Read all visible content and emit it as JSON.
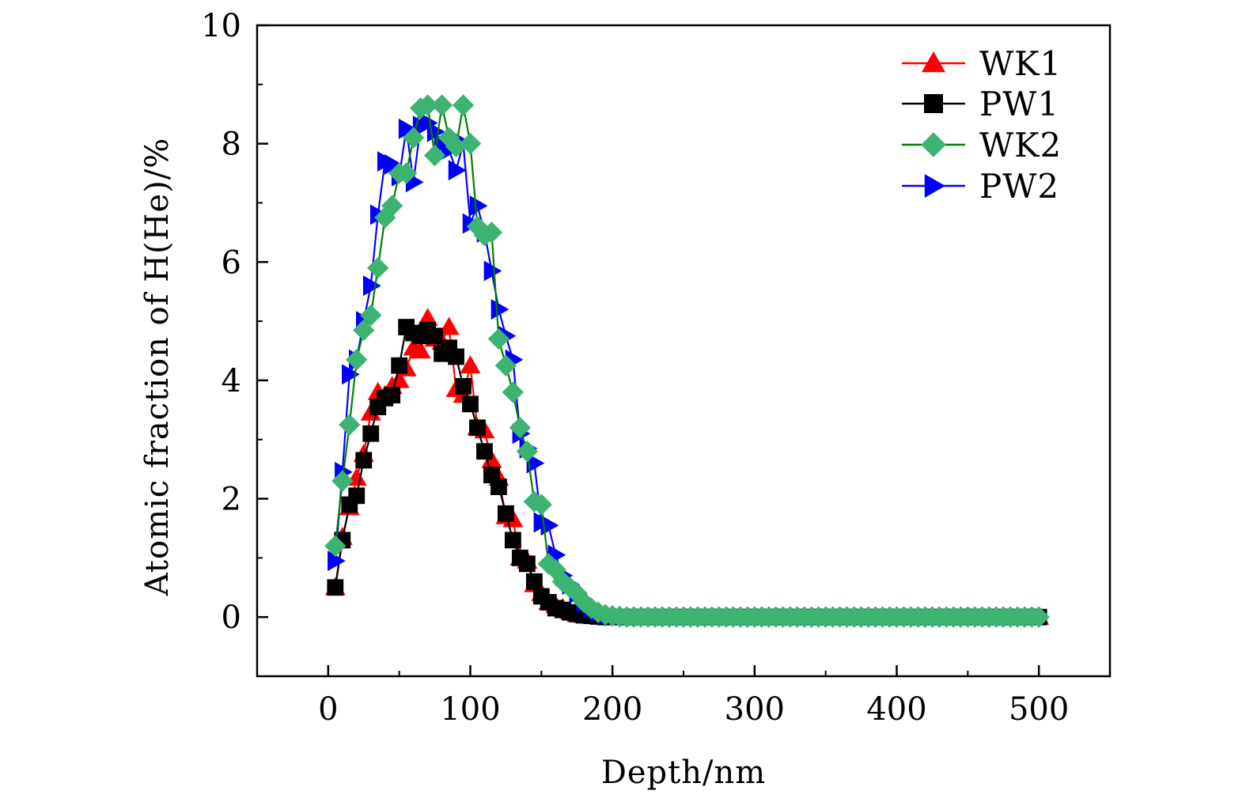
{
  "chart_data": {
    "type": "line",
    "title": "",
    "xlabel": "Depth/nm",
    "ylabel": "Atomic fraction of H(He)/%",
    "xlim": [
      -50,
      550
    ],
    "ylim": [
      -1,
      10
    ],
    "xticks": [
      0,
      100,
      200,
      300,
      400,
      500
    ],
    "yticks": [
      0,
      2,
      4,
      6,
      8,
      10
    ],
    "xtick_labels": [
      "0",
      "100",
      "200",
      "300",
      "400",
      "500"
    ],
    "ytick_labels": [
      "0",
      "2",
      "4",
      "6",
      "8",
      "10"
    ],
    "grid": false,
    "legend_position": "top-right",
    "x_step": 5,
    "x_max": 500,
    "series": [
      {
        "name": "WK1",
        "marker": "triangle-up",
        "color": "#ff0000",
        "marker_color": "#ff0000",
        "values": [
          0.5,
          1.35,
          1.85,
          2.35,
          2.75,
          3.45,
          3.8,
          3.75,
          3.9,
          4.0,
          4.2,
          4.55,
          4.5,
          5.05,
          4.7,
          4.65,
          4.9,
          3.85,
          3.75,
          4.25,
          3.2,
          3.15,
          2.65,
          2.35,
          1.7,
          1.65,
          1.0,
          0.95,
          0.55,
          0.4,
          0.25,
          0.2,
          0.15,
          0.1,
          0.05,
          0.03,
          0.02,
          0.01,
          0.0,
          0.0,
          0.0,
          0.0,
          0.0,
          0.0,
          0.0,
          0.0,
          0.0,
          0.0,
          0.0,
          0.0,
          0.0,
          0.0,
          0.0,
          0.0,
          0.0,
          0.0,
          0.0,
          0.0,
          0.0,
          0.0,
          0.0,
          0.0,
          0.0,
          0.0,
          0.0,
          0.0,
          0.0,
          0.0,
          0.0,
          0.0,
          0.0,
          0.0,
          0.0,
          0.0,
          0.0,
          0.0,
          0.0,
          0.0,
          0.0,
          0.0,
          0.0,
          0.0,
          0.0,
          0.0,
          0.0,
          0.0,
          0.0,
          0.0,
          0.0,
          0.0,
          0.0,
          0.0,
          0.0,
          0.0,
          0.0,
          0.0,
          0.0,
          0.0,
          0.0,
          0.0
        ]
      },
      {
        "name": "PW1",
        "marker": "square",
        "color": "#000000",
        "marker_color": "#000000",
        "values": [
          0.5,
          1.3,
          1.9,
          2.05,
          2.65,
          3.1,
          3.55,
          3.7,
          3.75,
          4.25,
          4.9,
          4.8,
          4.75,
          4.85,
          4.75,
          4.45,
          4.55,
          4.4,
          3.9,
          3.6,
          3.2,
          2.8,
          2.4,
          2.2,
          1.75,
          1.3,
          1.0,
          0.9,
          0.6,
          0.35,
          0.25,
          0.15,
          0.12,
          0.08,
          0.05,
          0.03,
          0.02,
          0.01,
          0.0,
          0.0,
          0.0,
          0.0,
          0.0,
          0.0,
          0.0,
          0.0,
          0.0,
          0.0,
          0.0,
          0.0,
          0.0,
          0.0,
          0.0,
          0.0,
          0.0,
          0.0,
          0.0,
          0.0,
          0.0,
          0.0,
          0.0,
          0.0,
          0.0,
          0.0,
          0.0,
          0.0,
          0.0,
          0.0,
          0.0,
          0.0,
          0.0,
          0.0,
          0.0,
          0.0,
          0.0,
          0.0,
          0.0,
          0.0,
          0.0,
          0.0,
          0.0,
          0.0,
          0.0,
          0.0,
          0.0,
          0.0,
          0.0,
          0.0,
          0.0,
          0.0,
          0.0,
          0.0,
          0.0,
          0.0,
          0.0,
          0.0,
          0.0,
          0.0,
          0.0,
          0.0
        ]
      },
      {
        "name": "PW2",
        "marker": "triangle-right",
        "color": "#0000ff",
        "marker_color": "#0000ff",
        "values": [
          0.95,
          2.45,
          4.1,
          4.35,
          5.0,
          5.6,
          6.8,
          7.7,
          7.65,
          7.45,
          8.25,
          7.35,
          8.3,
          8.35,
          8.2,
          8.0,
          7.9,
          7.55,
          8.0,
          6.65,
          6.95,
          6.5,
          5.85,
          5.2,
          4.75,
          4.35,
          3.1,
          2.85,
          2.6,
          1.6,
          1.55,
          1.05,
          0.7,
          0.55,
          0.4,
          0.25,
          0.15,
          0.08,
          0.04,
          0.02,
          0.01,
          0.0,
          0.0,
          0.0,
          0.0,
          0.0,
          0.0,
          0.0,
          0.0,
          0.0,
          0.0,
          0.0,
          0.0,
          0.0,
          0.0,
          0.0,
          0.0,
          0.0,
          0.0,
          0.0,
          0.0,
          0.0,
          0.0,
          0.0,
          0.0,
          0.0,
          0.0,
          0.0,
          0.0,
          0.0,
          0.0,
          0.0,
          0.0,
          0.0,
          0.0,
          0.0,
          0.0,
          0.0,
          0.0,
          0.0,
          0.0,
          0.0,
          0.0,
          0.0,
          0.0,
          0.0,
          0.0,
          0.0,
          0.0,
          0.0,
          0.0,
          0.0,
          0.0,
          0.0,
          0.0,
          0.0,
          0.0,
          0.0,
          0.0,
          0.0
        ]
      },
      {
        "name": "WK2",
        "marker": "diamond",
        "color": "#008000",
        "marker_color": "#3cb371",
        "values": [
          1.2,
          2.3,
          3.25,
          4.35,
          4.85,
          5.1,
          5.9,
          6.75,
          6.95,
          7.5,
          7.5,
          8.1,
          8.6,
          8.65,
          7.8,
          8.65,
          8.1,
          7.95,
          8.65,
          8.0,
          6.6,
          6.45,
          6.5,
          4.7,
          4.25,
          3.8,
          3.2,
          2.8,
          1.95,
          1.9,
          0.9,
          0.8,
          0.6,
          0.5,
          0.4,
          0.25,
          0.15,
          0.08,
          0.04,
          0.02,
          0.01,
          0.0,
          0.0,
          0.0,
          0.0,
          0.0,
          0.0,
          0.0,
          0.0,
          0.0,
          0.0,
          0.0,
          0.0,
          0.0,
          0.0,
          0.0,
          0.0,
          0.0,
          0.0,
          0.0,
          0.0,
          0.0,
          0.0,
          0.0,
          0.0,
          0.0,
          0.0,
          0.0,
          0.0,
          0.0,
          0.0,
          0.0,
          0.0,
          0.0,
          0.0,
          0.0,
          0.0,
          0.0,
          0.0,
          0.0,
          0.0,
          0.0,
          0.0,
          0.0,
          0.0,
          0.0,
          0.0,
          0.0,
          0.0,
          0.0,
          0.0,
          0.0,
          0.0,
          0.0,
          0.0,
          0.0,
          0.0,
          0.0,
          0.0,
          0.0
        ]
      }
    ],
    "legend_order": [
      "WK1",
      "PW1",
      "WK2",
      "PW2"
    ]
  }
}
